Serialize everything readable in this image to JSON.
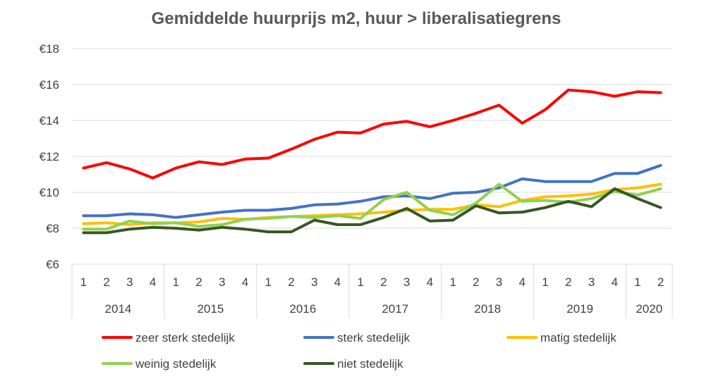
{
  "chart_data": {
    "type": "line",
    "title": "Gemiddelde huurprijs m2, huur > liberalisatiegrens",
    "xlabel": "",
    "ylabel": "",
    "ylim": [
      6,
      18
    ],
    "yticks": [
      6,
      8,
      10,
      12,
      14,
      16,
      18
    ],
    "ytick_labels": [
      "€6",
      "€8",
      "€10",
      "€12",
      "€14",
      "€16",
      "€18"
    ],
    "grid": true,
    "legend_position": "bottom",
    "x": [
      "1",
      "2",
      "3",
      "4",
      "1",
      "2",
      "3",
      "4",
      "1",
      "2",
      "3",
      "4",
      "1",
      "2",
      "3",
      "4",
      "1",
      "2",
      "3",
      "4",
      "1",
      "2",
      "3",
      "4",
      "1",
      "2"
    ],
    "groups": [
      {
        "label": "2014",
        "count": 4
      },
      {
        "label": "2015",
        "count": 4
      },
      {
        "label": "2016",
        "count": 4
      },
      {
        "label": "2017",
        "count": 4
      },
      {
        "label": "2018",
        "count": 4
      },
      {
        "label": "2019",
        "count": 4
      },
      {
        "label": "2020",
        "count": 2
      }
    ],
    "series": [
      {
        "name": "zeer sterk stedelijk",
        "color": "#ff0000",
        "values": [
          11.35,
          11.65,
          11.3,
          10.8,
          11.35,
          11.7,
          11.55,
          11.85,
          11.9,
          12.4,
          12.95,
          13.35,
          13.3,
          13.8,
          13.95,
          13.65,
          14.0,
          14.4,
          14.85,
          13.85,
          14.6,
          15.7,
          15.6,
          15.35,
          15.6,
          15.55
        ]
      },
      {
        "name": "sterk stedelijk",
        "color": "#4472c4",
        "values": [
          8.7,
          8.7,
          8.8,
          8.75,
          8.6,
          8.75,
          8.9,
          9.0,
          9.0,
          9.1,
          9.3,
          9.35,
          9.5,
          9.75,
          9.8,
          9.65,
          9.95,
          10.0,
          10.25,
          10.75,
          10.6,
          10.6,
          10.6,
          11.05,
          11.05,
          11.5
        ]
      },
      {
        "name": "matig stedelijk",
        "color": "#ffc000",
        "values": [
          8.25,
          8.3,
          8.2,
          8.3,
          8.3,
          8.35,
          8.55,
          8.5,
          8.6,
          8.65,
          8.7,
          8.75,
          8.8,
          8.9,
          9.0,
          9.05,
          9.05,
          9.3,
          9.2,
          9.55,
          9.75,
          9.8,
          9.9,
          10.15,
          10.25,
          10.45
        ]
      },
      {
        "name": "weinig stedelijk",
        "color": "#92d050",
        "values": [
          7.95,
          7.95,
          8.4,
          8.25,
          8.3,
          8.1,
          8.2,
          8.5,
          8.55,
          8.65,
          8.6,
          8.7,
          8.55,
          9.6,
          10.0,
          9.0,
          8.75,
          9.4,
          10.45,
          9.5,
          9.55,
          9.45,
          9.65,
          10.05,
          9.85,
          10.2
        ]
      },
      {
        "name": "niet stedelijk",
        "color": "#375623",
        "values": [
          7.75,
          7.75,
          7.95,
          8.05,
          8.0,
          7.9,
          8.05,
          7.95,
          7.8,
          7.8,
          8.45,
          8.2,
          8.2,
          8.6,
          9.1,
          8.4,
          8.45,
          9.25,
          8.85,
          8.9,
          9.15,
          9.5,
          9.2,
          10.2,
          9.65,
          9.15
        ]
      }
    ]
  }
}
